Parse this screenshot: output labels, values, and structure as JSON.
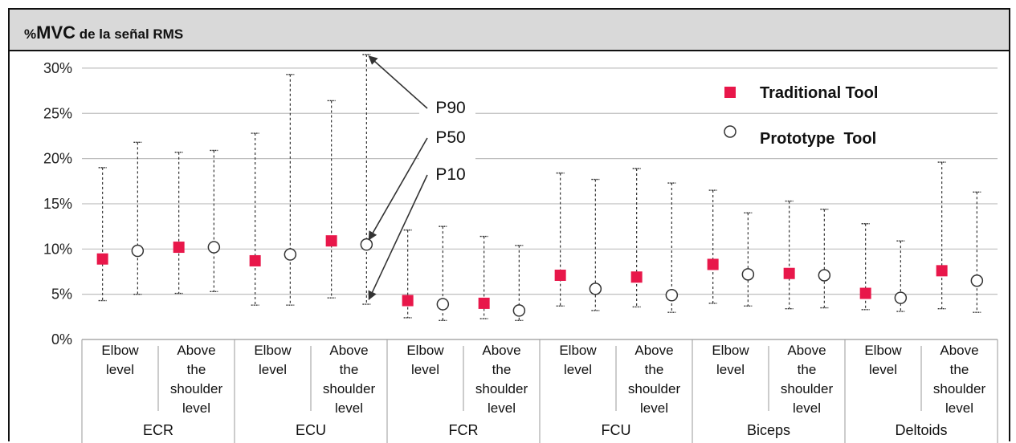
{
  "chart_data": {
    "type": "scatter",
    "title_prefix": "%",
    "title_main": "MVC",
    "title_suffix": " de la señal RMS",
    "ylim": [
      0,
      31.5
    ],
    "yticks": [
      0,
      5,
      10,
      15,
      20,
      25,
      30
    ],
    "ytick_labels": [
      "0%",
      "5%",
      "10%",
      "15%",
      "20%",
      "25%",
      "30%"
    ],
    "grid": true,
    "legend_position": "top-right",
    "colors": {
      "traditional": "#e8174a",
      "prototype_stroke": "#333333",
      "grid": "#bfbfbf",
      "whisker": "#333333"
    },
    "series": [
      {
        "name": "Traditional Tool",
        "marker": "square"
      },
      {
        "name": "Prototype  Tool",
        "marker": "circle"
      }
    ],
    "groups": [
      {
        "name": "ECR",
        "subgroups": [
          {
            "label": [
              "Elbow",
              "level"
            ],
            "traditional": {
              "p10": 4.3,
              "p50": 8.9,
              "p90": 19.0
            },
            "prototype": {
              "p10": 5.0,
              "p50": 9.8,
              "p90": 21.8
            }
          },
          {
            "label": [
              "Above",
              "the",
              "shoulder",
              "level"
            ],
            "traditional": {
              "p10": 5.1,
              "p50": 10.2,
              "p90": 20.7
            },
            "prototype": {
              "p10": 5.3,
              "p50": 10.2,
              "p90": 20.9
            }
          }
        ]
      },
      {
        "name": "ECU",
        "subgroups": [
          {
            "label": [
              "Elbow",
              "level"
            ],
            "traditional": {
              "p10": 3.8,
              "p50": 8.7,
              "p90": 22.8
            },
            "prototype": {
              "p10": 3.8,
              "p50": 9.4,
              "p90": 29.3
            }
          },
          {
            "label": [
              "Above",
              "the",
              "shoulder",
              "level"
            ],
            "traditional": {
              "p10": 4.6,
              "p50": 10.9,
              "p90": 26.4
            },
            "prototype": {
              "p10": 3.9,
              "p50": 10.5,
              "p90": 31.5
            }
          }
        ]
      },
      {
        "name": "FCR",
        "subgroups": [
          {
            "label": [
              "Elbow",
              "level"
            ],
            "traditional": {
              "p10": 2.4,
              "p50": 4.3,
              "p90": 12.1
            },
            "prototype": {
              "p10": 2.1,
              "p50": 3.9,
              "p90": 12.5
            }
          },
          {
            "label": [
              "Above",
              "the",
              "shoulder",
              "level"
            ],
            "traditional": {
              "p10": 2.3,
              "p50": 4.0,
              "p90": 11.4
            },
            "prototype": {
              "p10": 2.1,
              "p50": 3.2,
              "p90": 10.4
            }
          }
        ]
      },
      {
        "name": "FCU",
        "subgroups": [
          {
            "label": [
              "Elbow",
              "level"
            ],
            "traditional": {
              "p10": 3.7,
              "p50": 7.1,
              "p90": 18.4
            },
            "prototype": {
              "p10": 3.2,
              "p50": 5.6,
              "p90": 17.7
            }
          },
          {
            "label": [
              "Above",
              "the",
              "shoulder",
              "level"
            ],
            "traditional": {
              "p10": 3.6,
              "p50": 6.9,
              "p90": 18.9
            },
            "prototype": {
              "p10": 3.0,
              "p50": 4.9,
              "p90": 17.3
            }
          }
        ]
      },
      {
        "name": "Biceps",
        "subgroups": [
          {
            "label": [
              "Elbow",
              "level"
            ],
            "traditional": {
              "p10": 4.0,
              "p50": 8.3,
              "p90": 16.5
            },
            "prototype": {
              "p10": 3.7,
              "p50": 7.2,
              "p90": 14.0
            }
          },
          {
            "label": [
              "Above",
              "the",
              "shoulder",
              "level"
            ],
            "traditional": {
              "p10": 3.4,
              "p50": 7.3,
              "p90": 15.3
            },
            "prototype": {
              "p10": 3.5,
              "p50": 7.1,
              "p90": 14.4
            }
          }
        ]
      },
      {
        "name": "Deltoids",
        "subgroups": [
          {
            "label": [
              "Elbow",
              "level"
            ],
            "traditional": {
              "p10": 3.3,
              "p50": 5.1,
              "p90": 12.8
            },
            "prototype": {
              "p10": 3.1,
              "p50": 4.6,
              "p90": 10.9
            }
          },
          {
            "label": [
              "Above",
              "the",
              "shoulder",
              "level"
            ],
            "traditional": {
              "p10": 3.4,
              "p50": 7.6,
              "p90": 19.6
            },
            "prototype": {
              "p10": 3.0,
              "p50": 6.5,
              "p90": 16.3
            }
          }
        ]
      }
    ],
    "annotations": [
      "P90",
      "P50",
      "P10"
    ]
  }
}
